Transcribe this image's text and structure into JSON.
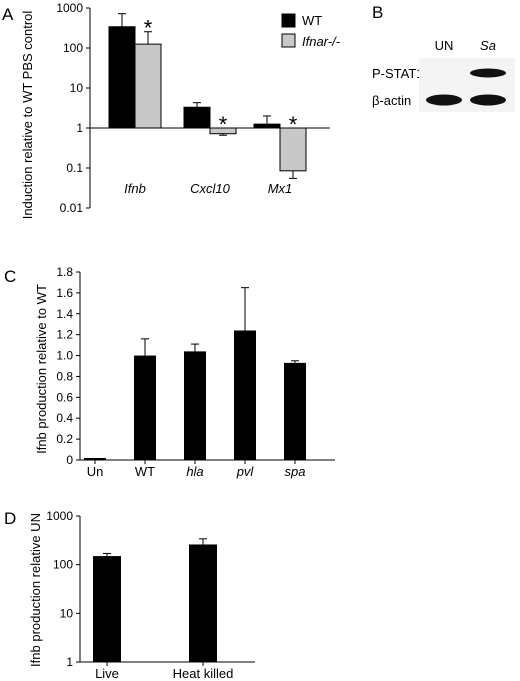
{
  "panels": {
    "A": "A",
    "B": "B",
    "C": "C",
    "D": "D"
  },
  "chart_data": [
    {
      "panel": "A",
      "type": "bar",
      "scale": "log",
      "ylabel": "Induction relative to WT PBS control",
      "ylim": [
        0.01,
        1000
      ],
      "yticks": [
        "0.01",
        "0.1",
        "1",
        "10",
        "100",
        "1000"
      ],
      "categories": [
        "Ifnb",
        "Cxcl10",
        "Mx1"
      ],
      "series": [
        {
          "name": "WT",
          "color": "#000000",
          "values": [
            340,
            3.3,
            1.25
          ],
          "errors": [
            380,
            1.0,
            0.75
          ]
        },
        {
          "name": "Ifnar-/-",
          "color": "#c8c8c8",
          "values": [
            125,
            0.72,
            0.085
          ],
          "errors": [
            130,
            0.06,
            0.03
          ]
        }
      ],
      "asterisks": [
        "*",
        "*",
        "*"
      ],
      "legend_position": "top-right"
    },
    {
      "panel": "C",
      "type": "bar",
      "ylabel": "Ifnb production relative to WT",
      "ylim": [
        0,
        1.8
      ],
      "yticks": [
        "0",
        "0.2",
        "0.4",
        "0.6",
        "0.8",
        "1.0",
        "1.2",
        "1.4",
        "1.6",
        "1.8"
      ],
      "categories": [
        "Un",
        "WT",
        "hla",
        "pvl",
        "spa"
      ],
      "values": [
        0.0,
        1.0,
        1.04,
        1.24,
        0.93
      ],
      "errors": [
        0.0,
        0.16,
        0.07,
        0.41,
        0.02
      ]
    },
    {
      "panel": "D",
      "type": "bar",
      "scale": "log",
      "ylabel": "Ifnb production relative UN",
      "ylim": [
        1,
        1000
      ],
      "yticks": [
        "1",
        "10",
        "100",
        "1000"
      ],
      "categories": [
        "Live",
        "Heat killed"
      ],
      "values": [
        150,
        260
      ],
      "errors": [
        20,
        80
      ]
    }
  ],
  "blot": {
    "lanes": [
      "UN",
      "Sa"
    ],
    "rows": [
      "P-STAT1",
      "β-actin"
    ],
    "band_intensity": [
      [
        0.0,
        1.0
      ],
      [
        1.0,
        1.0
      ]
    ]
  }
}
